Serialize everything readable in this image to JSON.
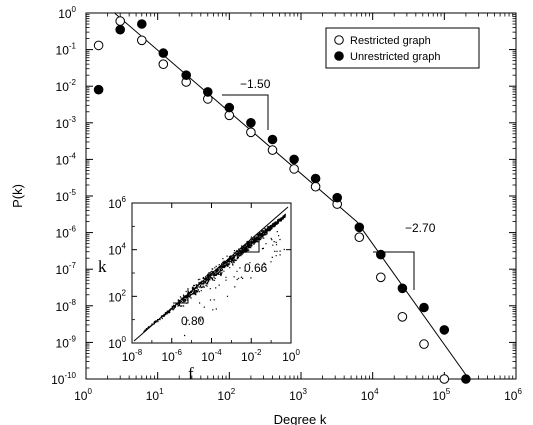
{
  "chart_data": [
    {
      "id": "main",
      "type": "scatter",
      "scale": "log-log",
      "xlabel": "Degree k",
      "ylabel": "P(k)",
      "xlim": [
        1,
        1000000
      ],
      "ylim": [
        1e-10,
        1
      ],
      "x_ticks": [
        1,
        10,
        100,
        1000,
        10000,
        100000,
        1000000
      ],
      "y_ticks": [
        1e-10,
        1e-09,
        1e-08,
        1e-07,
        1e-06,
        1e-05,
        0.0001,
        0.001,
        0.01,
        0.1,
        1
      ],
      "legend_position": "top-right",
      "series": [
        {
          "name": "Restricted graph",
          "marker": "open-circle",
          "color": "#000000",
          "points": [
            [
              1.5,
              0.13
            ],
            [
              3,
              0.6
            ],
            [
              6,
              0.18
            ],
            [
              12,
              0.04
            ],
            [
              25,
              0.013
            ],
            [
              50,
              0.0045
            ],
            [
              100,
              0.0016
            ],
            [
              200,
              0.00055
            ],
            [
              400,
              0.00018
            ],
            [
              800,
              5.5e-05
            ],
            [
              1600,
              1.8e-05
            ],
            [
              3200,
              6e-06
            ],
            [
              6500,
              7.5e-07
            ],
            [
              13000,
              6e-08
            ],
            [
              26000,
              5e-09
            ],
            [
              52000,
              9e-10
            ],
            [
              100000,
              1e-10
            ]
          ]
        },
        {
          "name": "Unrestricted graph",
          "marker": "filled-circle",
          "color": "#000000",
          "points": [
            [
              1.5,
              0.008
            ],
            [
              3,
              0.35
            ],
            [
              6,
              0.5
            ],
            [
              12,
              0.08
            ],
            [
              25,
              0.02
            ],
            [
              50,
              0.007
            ],
            [
              100,
              0.0026
            ],
            [
              200,
              0.001
            ],
            [
              400,
              0.00035
            ],
            [
              800,
              0.0001
            ],
            [
              1600,
              3e-05
            ],
            [
              3200,
              9e-06
            ],
            [
              6500,
              1.4e-06
            ],
            [
              13000,
              2.5e-07
            ],
            [
              26000,
              3e-08
            ],
            [
              52000,
              9e-09
            ],
            [
              100000,
              2.2e-09
            ],
            [
              200000,
              1e-10
            ]
          ]
        }
      ],
      "fit_lines": [
        {
          "from": [
            2.5,
            1.0
          ],
          "to": [
            6000,
            2e-06
          ],
          "slope_label": "-1.50"
        },
        {
          "from": [
            6000,
            2e-06
          ],
          "to": [
            220000,
            1e-10
          ],
          "slope_label": "-2.70"
        }
      ],
      "annotations": [
        {
          "text": "−1.50",
          "anchor": [
            400,
            0.00025
          ]
        },
        {
          "text": "−2.70",
          "anchor": [
            40000,
            2e-08
          ]
        }
      ]
    },
    {
      "id": "inset",
      "type": "scatter",
      "scale": "log-log",
      "xlabel": "f",
      "ylabel": "k",
      "xlim": [
        1e-08,
        1
      ],
      "ylim": [
        1,
        1000000
      ],
      "x_ticks": [
        1e-08,
        1e-06,
        0.0001,
        0.01,
        1
      ],
      "y_ticks": [
        1,
        100,
        10000,
        1000000
      ],
      "annotations": [
        {
          "text": "0.66",
          "anchor": [
            0.003,
            700
          ]
        },
        {
          "text": "0.80",
          "anchor": [
            5e-06,
            20
          ]
        }
      ]
    }
  ],
  "axis_labels": {
    "main_x": "Degree k",
    "main_y": "P(k)",
    "inset_x": "f",
    "inset_y": "k"
  },
  "annotation_text": {
    "slope_top": "−1.50",
    "slope_bottom": "−2.70",
    "inset_slope_top": "0.66",
    "inset_slope_bottom": "0.80"
  },
  "legend": {
    "restricted": "Restricted graph",
    "unrestricted": "Unrestricted graph"
  },
  "colors": {
    "marker": "#000000",
    "background": "#ffffff"
  }
}
